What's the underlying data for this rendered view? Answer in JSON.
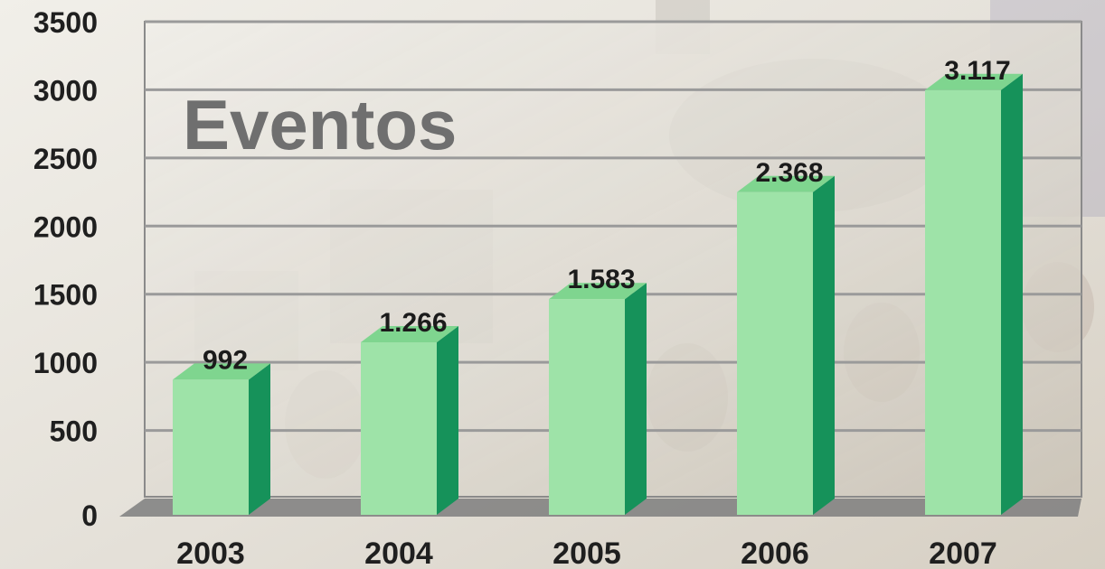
{
  "chart_data": {
    "type": "bar",
    "title": "Eventos",
    "categories": [
      "2003",
      "2004",
      "2005",
      "2006",
      "2007"
    ],
    "values": [
      992,
      1266,
      1583,
      2368,
      3117
    ],
    "value_labels": [
      "992",
      "1.266",
      "1.583",
      "2.368",
      "3.117"
    ],
    "ylim": [
      0,
      3500
    ],
    "yticks": [
      0,
      500,
      1000,
      1500,
      2000,
      2500,
      3000,
      3500
    ],
    "grid": true,
    "style": "3d-columns",
    "colors": {
      "bar_front": "#9ee3a8",
      "bar_side": "#16925a",
      "bar_top": "#7fd58f",
      "grid": "#9a9a9a",
      "floor": "#7e7e7e"
    }
  }
}
